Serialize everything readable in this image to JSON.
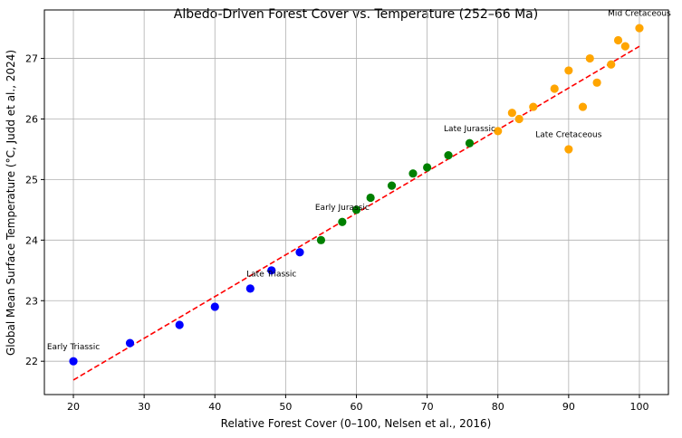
{
  "chart_data": {
    "type": "scatter",
    "title": "Albedo-Driven Forest Cover vs. Temperature (252–66 Ma)",
    "xlabel": "Relative Forest Cover (0–100, Nelsen et al., 2016)",
    "ylabel": "Global Mean Surface Temperature (°C, Judd et al., 2024)",
    "xlim": [
      15.9,
      104.1
    ],
    "ylim": [
      21.45,
      27.8
    ],
    "xticks": [
      20,
      30,
      40,
      50,
      60,
      70,
      80,
      90,
      100
    ],
    "yticks": [
      22,
      23,
      24,
      25,
      26,
      27
    ],
    "grid": true,
    "series": [
      {
        "color": "#0000ff",
        "points": [
          [
            20,
            22.0
          ],
          [
            28,
            22.3
          ],
          [
            35,
            22.6
          ],
          [
            40,
            22.9
          ],
          [
            45,
            23.2
          ],
          [
            48,
            23.5
          ],
          [
            52,
            23.8
          ]
        ]
      },
      {
        "color": "#008000",
        "points": [
          [
            55,
            24.0
          ],
          [
            58,
            24.3
          ],
          [
            60,
            24.5
          ],
          [
            62,
            24.7
          ],
          [
            65,
            24.9
          ],
          [
            68,
            25.1
          ],
          [
            70,
            25.2
          ],
          [
            73,
            25.4
          ],
          [
            76,
            25.6
          ]
        ]
      },
      {
        "color": "#ffa500",
        "points": [
          [
            80,
            25.8
          ],
          [
            82,
            26.1
          ],
          [
            83,
            26.0
          ],
          [
            85,
            26.2
          ],
          [
            88,
            26.5
          ],
          [
            90,
            26.8
          ],
          [
            90,
            25.5
          ],
          [
            92,
            26.2
          ],
          [
            93,
            27.0
          ],
          [
            94,
            26.6
          ],
          [
            96,
            26.9
          ],
          [
            97,
            27.3
          ],
          [
            98,
            27.2
          ],
          [
            100,
            27.5
          ]
        ]
      }
    ],
    "trendline": {
      "style": "dashed",
      "color": "#ff0000",
      "x": [
        20,
        100
      ],
      "y": [
        21.69,
        27.2
      ]
    },
    "annotations": [
      {
        "text": "Early Triassic",
        "x": 20,
        "y": 22.2
      },
      {
        "text": "Late Triassic",
        "x": 48,
        "y": 23.4
      },
      {
        "text": "Early Jurassic",
        "x": 58,
        "y": 24.5
      },
      {
        "text": "Late Jurassic",
        "x": 76,
        "y": 25.8
      },
      {
        "text": "Late Cretaceous",
        "x": 90,
        "y": 25.7
      },
      {
        "text": "Mid Cretaceous",
        "x": 100,
        "y": 27.7
      }
    ]
  }
}
